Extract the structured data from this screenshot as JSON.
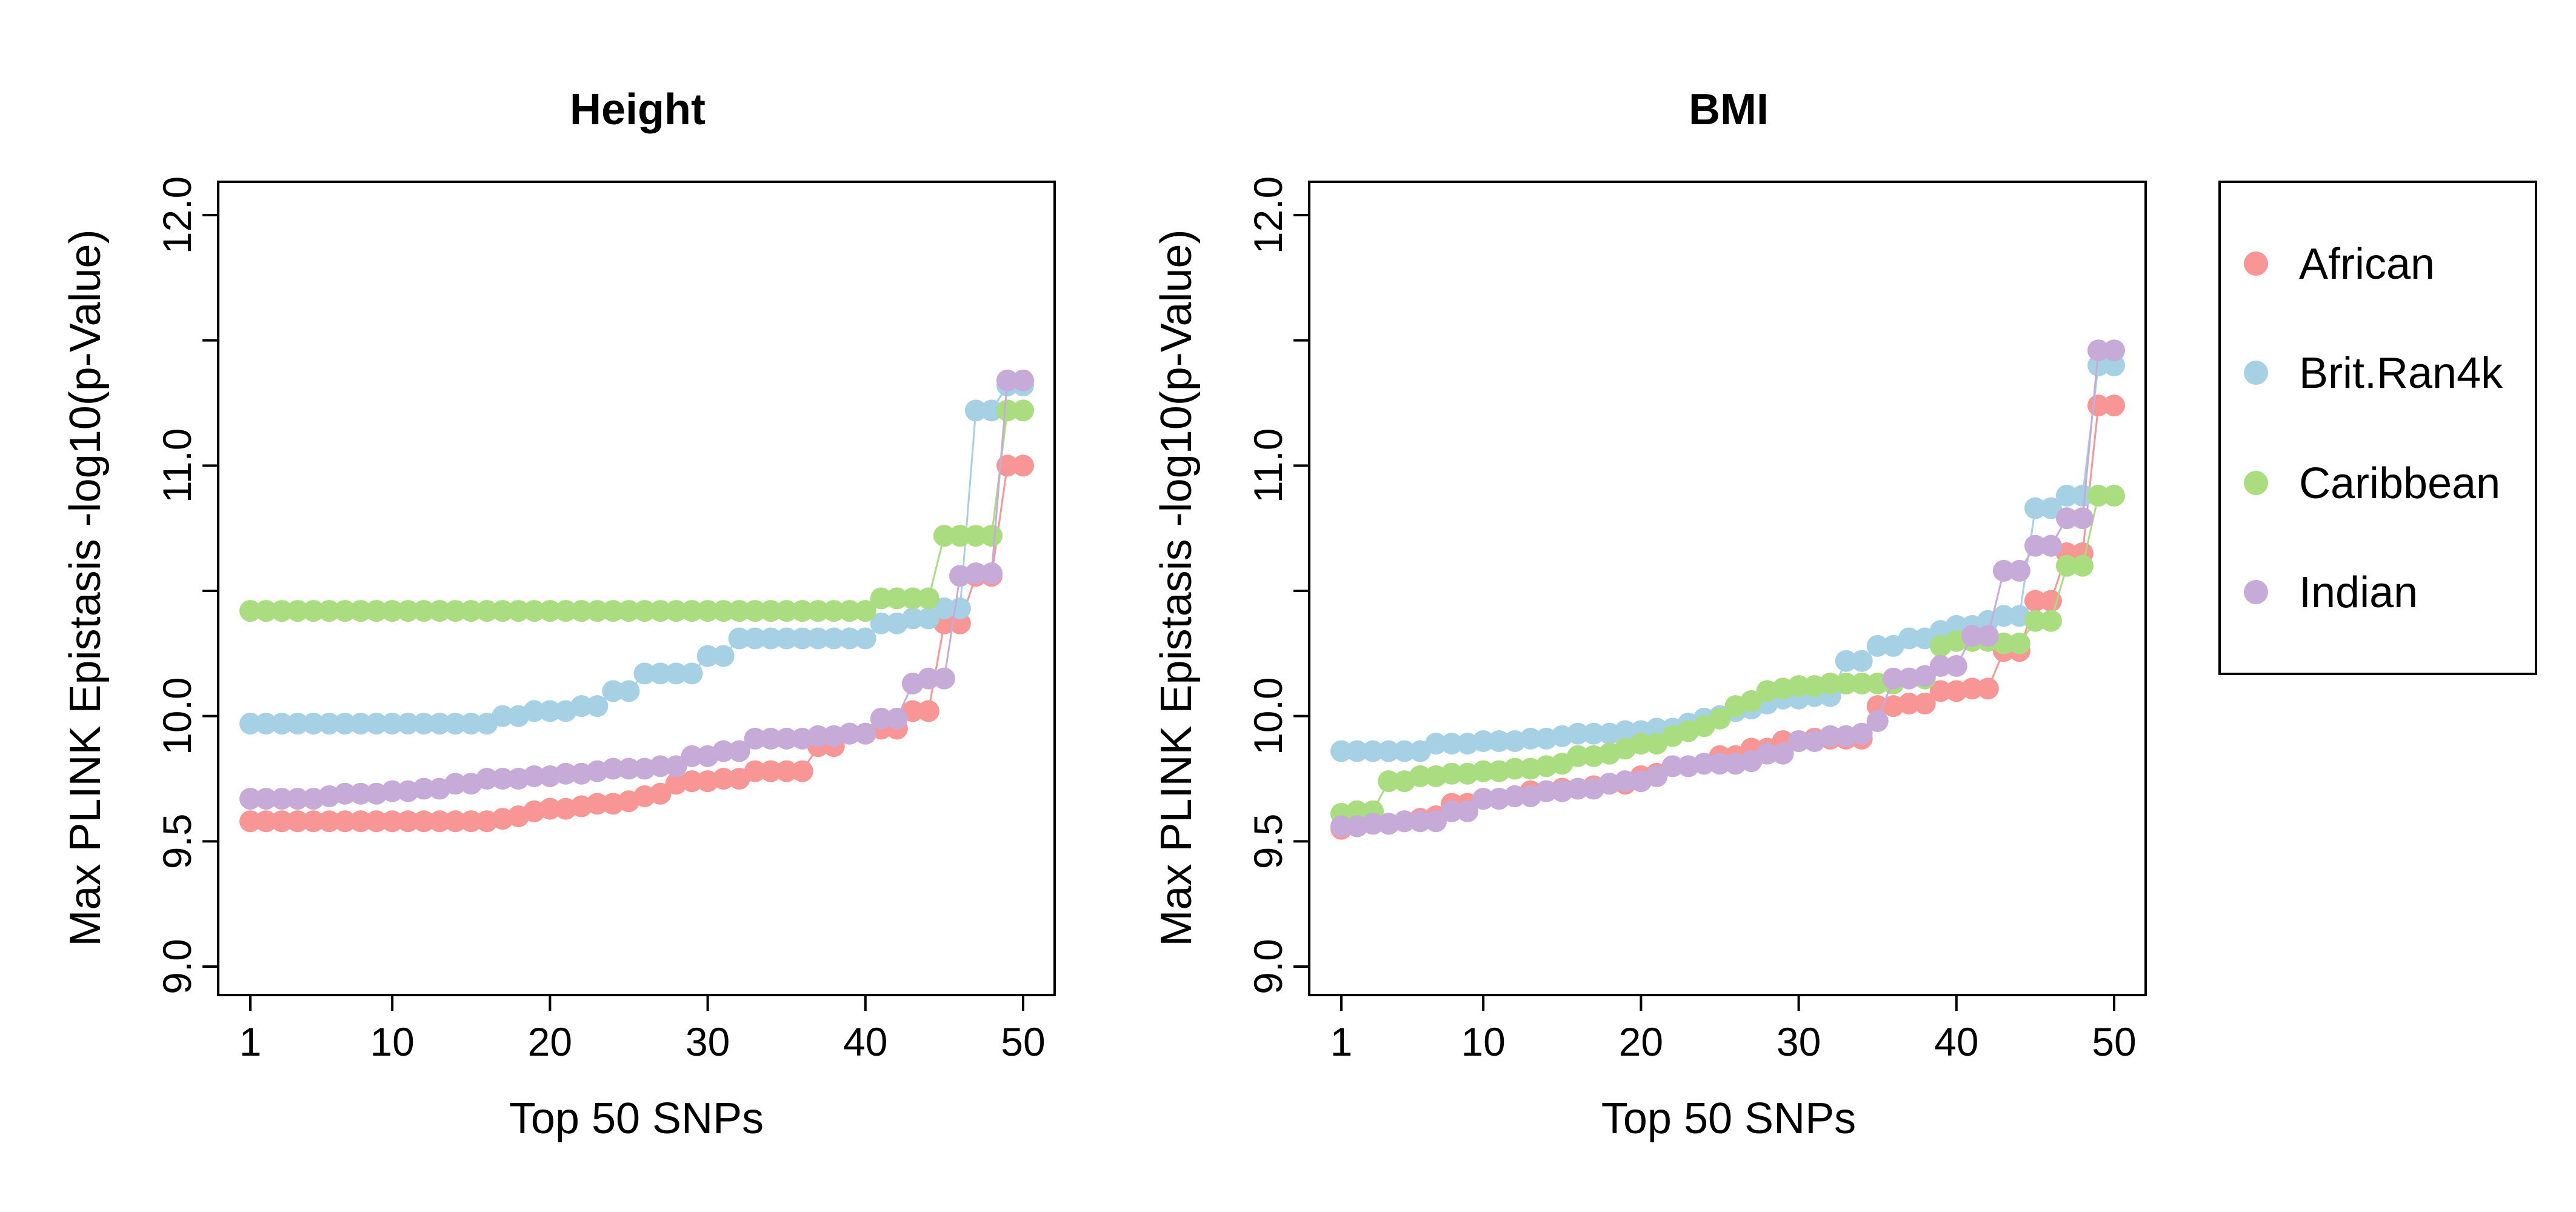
{
  "chart_data": [
    {
      "type": "line",
      "title": "Height",
      "xlabel": "Top 50 SNPs",
      "ylabel": "Max PLINK Epistasis -log10(p-Value)",
      "xlim": [
        1,
        50
      ],
      "ylim": [
        9.0,
        12.0
      ],
      "x_ticks": [
        "1",
        "10",
        "20",
        "30",
        "40",
        "50"
      ],
      "y_ticks": [
        "9.0",
        "9.5",
        "10.0",
        "11.0",
        "12.0"
      ],
      "grid": false,
      "series": [
        {
          "name": "African",
          "color": "#F89595",
          "values": [
            9.58,
            9.58,
            9.58,
            9.58,
            9.58,
            9.58,
            9.58,
            9.58,
            9.58,
            9.58,
            9.58,
            9.58,
            9.58,
            9.58,
            9.58,
            9.58,
            9.59,
            9.6,
            9.62,
            9.63,
            9.63,
            9.64,
            9.65,
            9.65,
            9.66,
            9.68,
            9.69,
            9.73,
            9.74,
            9.74,
            9.75,
            9.75,
            9.78,
            9.78,
            9.78,
            9.78,
            9.88,
            9.88,
            9.93,
            9.93,
            9.95,
            9.95,
            10.02,
            10.02,
            10.37,
            10.37,
            10.56,
            10.56,
            11.0,
            11.0
          ]
        },
        {
          "name": "Brit.Ran4k",
          "color": "#A6D1E5",
          "values": [
            9.97,
            9.97,
            9.97,
            9.97,
            9.97,
            9.97,
            9.97,
            9.97,
            9.97,
            9.97,
            9.97,
            9.97,
            9.97,
            9.97,
            9.97,
            9.97,
            10.0,
            10.0,
            10.02,
            10.02,
            10.02,
            10.04,
            10.04,
            10.1,
            10.1,
            10.17,
            10.17,
            10.17,
            10.17,
            10.24,
            10.24,
            10.31,
            10.31,
            10.31,
            10.31,
            10.31,
            10.31,
            10.31,
            10.31,
            10.31,
            10.37,
            10.37,
            10.39,
            10.39,
            10.43,
            10.43,
            11.22,
            11.22,
            11.32,
            11.32
          ]
        },
        {
          "name": "Caribbean",
          "color": "#A9DD7F",
          "values": [
            10.42,
            10.42,
            10.42,
            10.42,
            10.42,
            10.42,
            10.42,
            10.42,
            10.42,
            10.42,
            10.42,
            10.42,
            10.42,
            10.42,
            10.42,
            10.42,
            10.42,
            10.42,
            10.42,
            10.42,
            10.42,
            10.42,
            10.42,
            10.42,
            10.42,
            10.42,
            10.42,
            10.42,
            10.42,
            10.42,
            10.42,
            10.42,
            10.42,
            10.42,
            10.42,
            10.42,
            10.42,
            10.42,
            10.42,
            10.42,
            10.47,
            10.47,
            10.47,
            10.47,
            10.72,
            10.72,
            10.72,
            10.72,
            11.22,
            11.22
          ]
        },
        {
          "name": "Indian",
          "color": "#C6ABD8",
          "values": [
            9.67,
            9.67,
            9.67,
            9.67,
            9.67,
            9.68,
            9.69,
            9.69,
            9.69,
            9.7,
            9.7,
            9.71,
            9.71,
            9.73,
            9.73,
            9.75,
            9.75,
            9.75,
            9.76,
            9.76,
            9.77,
            9.77,
            9.78,
            9.79,
            9.79,
            9.79,
            9.8,
            9.8,
            9.84,
            9.84,
            9.86,
            9.86,
            9.91,
            9.91,
            9.91,
            9.91,
            9.92,
            9.92,
            9.93,
            9.93,
            9.99,
            9.99,
            10.13,
            10.15,
            10.15,
            10.56,
            10.57,
            10.57,
            11.34,
            11.34
          ]
        }
      ]
    },
    {
      "type": "line",
      "title": "BMI",
      "xlabel": "Top 50 SNPs",
      "ylabel": "Max PLINK Epistasis -log10(p-Value)",
      "xlim": [
        1,
        50
      ],
      "ylim": [
        9.0,
        12.0
      ],
      "x_ticks": [
        "1",
        "10",
        "20",
        "30",
        "40",
        "50"
      ],
      "y_ticks": [
        "9.0",
        "9.5",
        "10.0",
        "11.0",
        "12.0"
      ],
      "grid": false,
      "series": [
        {
          "name": "African",
          "color": "#F89595",
          "values": [
            9.55,
            9.56,
            9.57,
            9.57,
            9.58,
            9.59,
            9.6,
            9.65,
            9.65,
            9.67,
            9.67,
            9.68,
            9.7,
            9.7,
            9.71,
            9.71,
            9.72,
            9.73,
            9.73,
            9.76,
            9.77,
            9.8,
            9.8,
            9.81,
            9.84,
            9.84,
            9.87,
            9.87,
            9.9,
            9.9,
            9.91,
            9.91,
            9.91,
            9.91,
            10.04,
            10.04,
            10.05,
            10.05,
            10.1,
            10.1,
            10.11,
            10.11,
            10.26,
            10.26,
            10.46,
            10.46,
            10.65,
            10.65,
            11.24,
            11.24
          ]
        },
        {
          "name": "Brit.Ran4k",
          "color": "#A6D1E5",
          "values": [
            9.86,
            9.86,
            9.86,
            9.86,
            9.86,
            9.86,
            9.89,
            9.89,
            9.89,
            9.9,
            9.9,
            9.9,
            9.91,
            9.91,
            9.92,
            9.93,
            9.93,
            9.93,
            9.94,
            9.94,
            9.95,
            9.95,
            9.97,
            9.99,
            10.0,
            10.02,
            10.03,
            10.05,
            10.07,
            10.07,
            10.08,
            10.08,
            10.22,
            10.22,
            10.28,
            10.28,
            10.31,
            10.31,
            10.34,
            10.36,
            10.36,
            10.38,
            10.4,
            10.4,
            10.83,
            10.83,
            10.88,
            10.88,
            11.4,
            11.4
          ]
        },
        {
          "name": "Caribbean",
          "color": "#A9DD7F",
          "values": [
            9.61,
            9.62,
            9.62,
            9.74,
            9.74,
            9.76,
            9.76,
            9.77,
            9.77,
            9.78,
            9.78,
            9.79,
            9.79,
            9.8,
            9.81,
            9.84,
            9.84,
            9.85,
            9.87,
            9.89,
            9.89,
            9.92,
            9.94,
            9.96,
            9.99,
            10.04,
            10.06,
            10.1,
            10.11,
            10.12,
            10.12,
            10.13,
            10.13,
            10.13,
            10.13,
            10.13,
            10.15,
            10.15,
            10.28,
            10.3,
            10.3,
            10.3,
            10.29,
            10.29,
            10.38,
            10.38,
            10.6,
            10.6,
            10.88,
            10.88
          ]
        },
        {
          "name": "Indian",
          "color": "#C6ABD8",
          "values": [
            9.56,
            9.56,
            9.57,
            9.57,
            9.58,
            9.58,
            9.58,
            9.62,
            9.62,
            9.67,
            9.67,
            9.68,
            9.68,
            9.7,
            9.7,
            9.71,
            9.71,
            9.73,
            9.74,
            9.74,
            9.76,
            9.8,
            9.8,
            9.81,
            9.81,
            9.81,
            9.82,
            9.85,
            9.85,
            9.9,
            9.9,
            9.92,
            9.92,
            9.93,
            9.98,
            10.15,
            10.15,
            10.16,
            10.2,
            10.2,
            10.32,
            10.32,
            10.58,
            10.58,
            10.68,
            10.68,
            10.79,
            10.79,
            11.46,
            11.46
          ]
        }
      ]
    }
  ],
  "legend": {
    "position": "right",
    "entries": [
      {
        "label": "African",
        "color": "#F89595"
      },
      {
        "label": "Brit.Ran4k",
        "color": "#A6D1E5"
      },
      {
        "label": "Caribbean",
        "color": "#A9DD7F"
      },
      {
        "label": "Indian",
        "color": "#C6ABD8"
      }
    ]
  }
}
